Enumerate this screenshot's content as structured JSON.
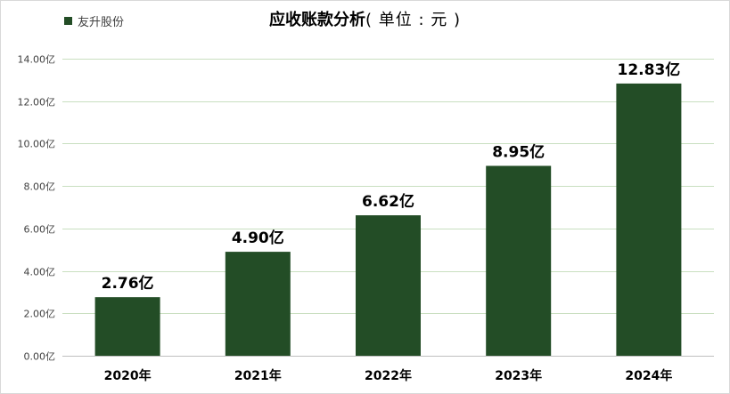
{
  "title_main": "应收账款分析",
  "title_sub": "( 单位 : 元 )",
  "legend_label": "友升股份",
  "colors": {
    "bar": "#234d26",
    "grid": "#c9dfc0"
  },
  "chart_data": {
    "type": "bar",
    "title": "应收账款分析( 单位 : 元 )",
    "categories": [
      "2020年",
      "2021年",
      "2022年",
      "2023年",
      "2024年"
    ],
    "series": [
      {
        "name": "友升股份",
        "values": [
          2.76,
          4.9,
          6.62,
          8.95,
          12.83
        ],
        "labels": [
          "2.76亿",
          "4.90亿",
          "6.62亿",
          "8.95亿",
          "12.83亿"
        ]
      }
    ],
    "ylim": [
      0,
      14
    ],
    "yticks": [
      0,
      2,
      4,
      6,
      8,
      10,
      12,
      14
    ],
    "ytick_labels": [
      "0.00亿",
      "2.00亿",
      "4.00亿",
      "6.00亿",
      "8.00亿",
      "10.00亿",
      "12.00亿",
      "14.00亿"
    ],
    "xlabel": "",
    "ylabel": "",
    "grid": true,
    "legend": "top-left"
  }
}
